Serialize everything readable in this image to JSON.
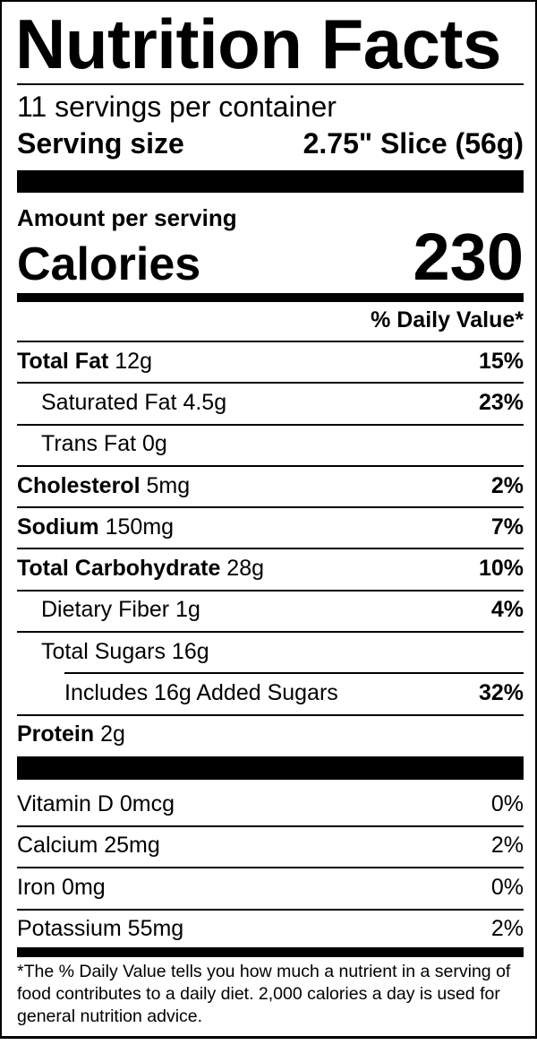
{
  "title": "Nutrition Facts",
  "servings_per_container": "11 servings per container",
  "serving_size": {
    "label": "Serving size",
    "value": "2.75\" Slice (56g)"
  },
  "amount_per_serving": "Amount per serving",
  "calories": {
    "label": "Calories",
    "value": "230"
  },
  "daily_value_header": "% Daily Value*",
  "nutrients": [
    {
      "name": "Total Fat",
      "amount": "12g",
      "dv": "15%",
      "level": 0
    },
    {
      "name": "Saturated Fat",
      "amount": "4.5g",
      "dv": "23%",
      "level": 1
    },
    {
      "name": "Trans Fat",
      "amount": "0g",
      "dv": "",
      "level": 1
    },
    {
      "name": "Cholesterol",
      "amount": "5mg",
      "dv": "2%",
      "level": 0
    },
    {
      "name": "Sodium",
      "amount": "150mg",
      "dv": "7%",
      "level": 0
    },
    {
      "name": "Total Carbohydrate",
      "amount": "28g",
      "dv": "10%",
      "level": 0
    },
    {
      "name": "Dietary Fiber",
      "amount": "1g",
      "dv": "4%",
      "level": 1
    },
    {
      "name": "Total Sugars",
      "amount": "16g",
      "dv": "",
      "level": 1
    },
    {
      "name": "Includes 16g Added Sugars",
      "amount": "",
      "dv": "32%",
      "level": 2
    },
    {
      "name": "Protein",
      "amount": "2g",
      "dv": "",
      "level": 0
    }
  ],
  "vitamins": [
    {
      "name": "Vitamin D",
      "amount": "0mcg",
      "dv": "0%"
    },
    {
      "name": "Calcium",
      "amount": "25mg",
      "dv": "2%"
    },
    {
      "name": "Iron",
      "amount": "0mg",
      "dv": "0%"
    },
    {
      "name": "Potassium",
      "amount": "55mg",
      "dv": "2%"
    }
  ],
  "footnote": "*The % Daily Value tells you how much a nutrient in a serving of food contributes to a daily diet. 2,000 calories a day is used for general nutrition advice."
}
